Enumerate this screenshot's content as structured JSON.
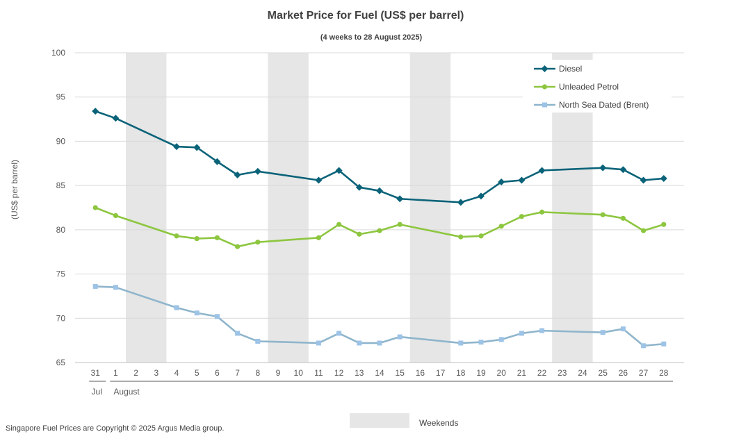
{
  "chart_data": {
    "type": "line",
    "title": "Market Price for Fuel (US$ per barrel)",
    "subtitle": "(4 weeks to 28 August 2025)",
    "ylabel": "(US$ per barrel)",
    "xlabel": "",
    "ylim": [
      65,
      100
    ],
    "yticks": [
      65,
      70,
      75,
      80,
      85,
      90,
      95,
      100
    ],
    "grid": true,
    "legend_position": "top-right",
    "categories": [
      "31",
      "1",
      "2",
      "3",
      "4",
      "5",
      "6",
      "7",
      "8",
      "9",
      "10",
      "11",
      "12",
      "13",
      "14",
      "15",
      "16",
      "17",
      "18",
      "19",
      "20",
      "21",
      "22",
      "23",
      "24",
      "25",
      "26",
      "27",
      "28"
    ],
    "month_labels": [
      "Jul",
      "August"
    ],
    "weekend_bands": [
      [
        "2",
        "3"
      ],
      [
        "9",
        "10"
      ],
      [
        "16",
        "17"
      ],
      [
        "23",
        "24"
      ]
    ],
    "weekend_label": "Weekends",
    "weekend_color": "#e6e6e6",
    "series": [
      {
        "name": "Diesel",
        "color": "#0b6379",
        "marker": "diamond",
        "values": [
          93.4,
          92.6,
          null,
          null,
          89.4,
          89.3,
          87.7,
          86.2,
          86.6,
          null,
          null,
          85.6,
          86.7,
          84.8,
          84.4,
          83.5,
          null,
          null,
          83.1,
          83.8,
          85.4,
          85.6,
          86.7,
          null,
          null,
          87.0,
          86.8,
          85.6,
          85.8
        ]
      },
      {
        "name": "Unleaded Petrol",
        "color": "#8dc63f",
        "marker": "circle",
        "values": [
          82.5,
          81.6,
          null,
          null,
          79.3,
          79.0,
          79.1,
          78.1,
          78.6,
          null,
          null,
          79.1,
          80.6,
          79.5,
          79.9,
          80.6,
          null,
          null,
          79.2,
          79.3,
          80.4,
          81.5,
          82.0,
          null,
          null,
          81.7,
          81.3,
          79.9,
          80.6
        ]
      },
      {
        "name": "North Sea Dated (Brent)",
        "color": "#8fb5cc",
        "marker_color": "#9dc3e6",
        "marker": "square",
        "values": [
          73.6,
          73.5,
          null,
          null,
          71.2,
          70.6,
          70.2,
          68.3,
          67.4,
          null,
          null,
          67.2,
          68.3,
          67.2,
          67.2,
          67.9,
          null,
          null,
          67.2,
          67.3,
          67.6,
          68.3,
          68.6,
          null,
          null,
          68.4,
          68.8,
          66.9,
          67.1
        ]
      }
    ]
  },
  "footer": {
    "copyright": "Singapore Fuel Prices are Copyright © 2025 Argus Media group."
  }
}
